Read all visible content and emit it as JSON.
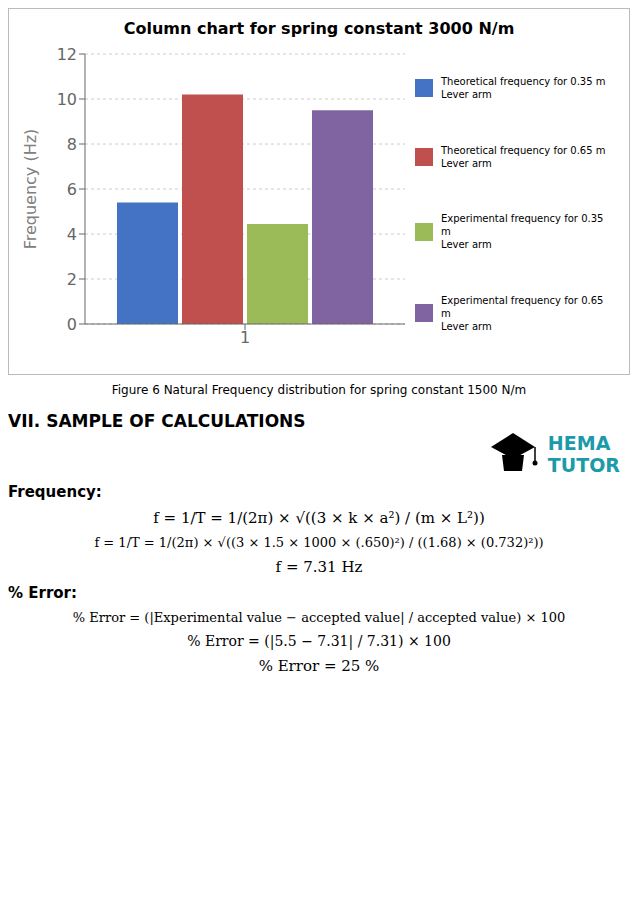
{
  "chart_data": {
    "type": "bar",
    "title": "Column chart for spring constant 3000 N/m",
    "categories": [
      "1"
    ],
    "series": [
      {
        "name": "Theoretical frequency for 0.35 m\nLever arm",
        "color": "#4472C4",
        "values": [
          5.4
        ]
      },
      {
        "name": "Theoretical frequency for 0.65 m\nLever arm",
        "color": "#C0504D",
        "values": [
          10.2
        ]
      },
      {
        "name": "Experimental frequency for 0.35 m\nLever arm",
        "color": "#9BBB59",
        "values": [
          4.45
        ]
      },
      {
        "name": "Experimental frequency for 0.65 m\nLever arm",
        "color": "#8064A2",
        "values": [
          9.5
        ]
      }
    ],
    "ylabel": "Frequency (Hz)",
    "ylim": [
      0,
      12
    ],
    "yticks": [
      0,
      2,
      4,
      6,
      8,
      10,
      12
    ],
    "grid": true,
    "legend": "right",
    "annotations": [
      "Figure 6 Natural Frequency distribution for spring constant 1500 N/m",
      "VII. SAMPLE OF CALCULATIONS",
      "HEMA",
      "TUTOR",
      "Frequency:",
      "f = 1/T = 1/(2π) × √((3 × k × a²) / (m × L²))",
      "f = 1/T = 1/(2π) × √((3 × 1.5 × 1000 × (.650)²) / ((1.68) × (0.732)²))",
      "f = 7.31 Hz",
      "% Error:",
      "% Error = (|Experimental value − accepted value| / accepted value) × 100",
      "% Error = (|5.5 − 7.31| / 7.31) × 100",
      "% Error = 25 %"
    ]
  }
}
